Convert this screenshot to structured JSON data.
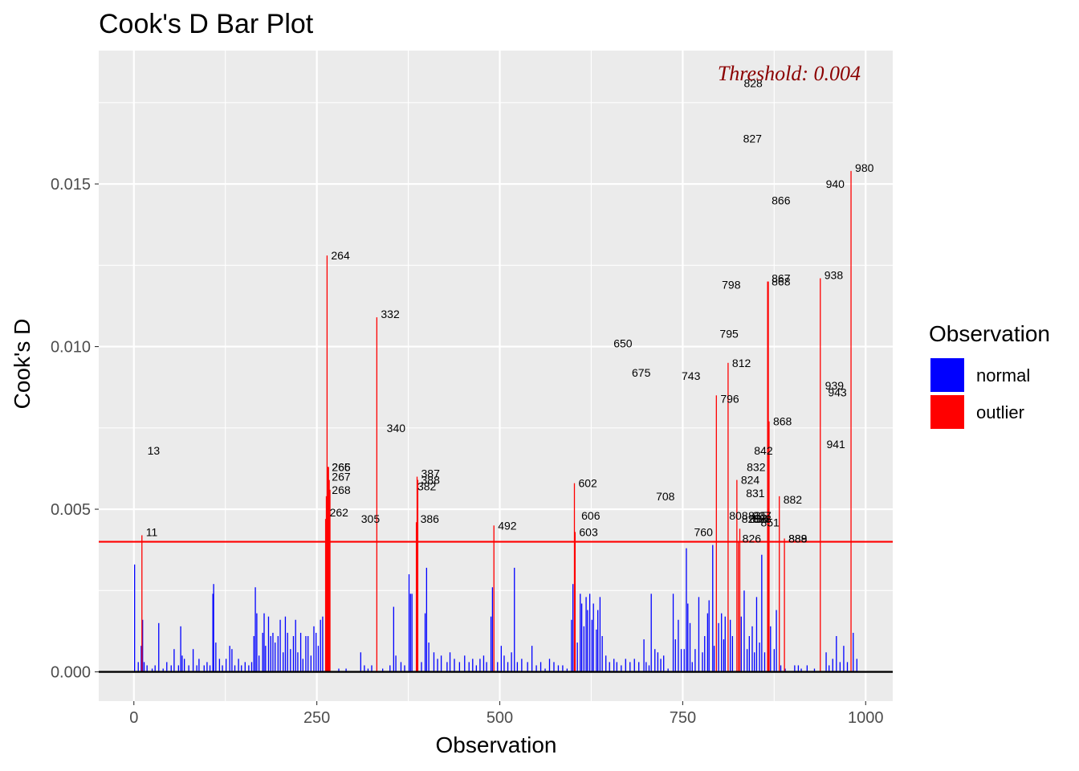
{
  "chart_data": {
    "type": "bar",
    "title": "Cook's D Bar Plot",
    "xlabel": "Observation",
    "ylabel": "Cook's D",
    "xlim": [
      -48,
      1037
    ],
    "ylim": [
      -0.0009,
      0.0191
    ],
    "x_ticks": [
      0,
      250,
      500,
      750,
      1000
    ],
    "x_tick_labels": [
      "0",
      "250",
      "500",
      "750",
      "1000"
    ],
    "y_ticks": [
      0.0,
      0.005,
      0.01,
      0.015
    ],
    "y_tick_labels": [
      "0.000",
      "0.005",
      "0.010",
      "0.015"
    ],
    "grid": true,
    "threshold": 0.004,
    "threshold_label": "Threshold: 0.004",
    "colors": {
      "normal": "#0000ff",
      "outlier": "#ff0000",
      "threshold_line": "#ff0000",
      "threshold_text": "#8b0000",
      "panel": "#ebebeb",
      "grid": "#ffffff"
    },
    "legend": {
      "title": "Observation",
      "placement": "right",
      "entries": [
        {
          "name": "normal",
          "color": "#0000ff"
        },
        {
          "name": "outlier",
          "color": "#ff0000"
        }
      ]
    },
    "normal_bars": [
      [
        1,
        0.0033
      ],
      [
        6,
        0.0003
      ],
      [
        10,
        0.0008
      ],
      [
        12,
        0.0016
      ],
      [
        14,
        0.0003
      ],
      [
        18,
        0.0002
      ],
      [
        25,
        0.0001
      ],
      [
        29,
        0.0002
      ],
      [
        34,
        0.0015
      ],
      [
        40,
        0.0001
      ],
      [
        45,
        0.0003
      ],
      [
        51,
        0.0002
      ],
      [
        55,
        0.0007
      ],
      [
        61,
        0.0002
      ],
      [
        64,
        0.0014
      ],
      [
        66,
        0.0005
      ],
      [
        69,
        0.0004
      ],
      [
        75,
        0.0002
      ],
      [
        81,
        0.0007
      ],
      [
        86,
        0.0002
      ],
      [
        89,
        0.0004
      ],
      [
        96,
        0.0002
      ],
      [
        100,
        0.0003
      ],
      [
        104,
        0.0002
      ],
      [
        108,
        0.0024
      ],
      [
        109,
        0.0027
      ],
      [
        112,
        0.0009
      ],
      [
        117,
        0.0004
      ],
      [
        121,
        0.0002
      ],
      [
        126,
        0.0004
      ],
      [
        131,
        0.0008
      ],
      [
        134,
        0.0007
      ],
      [
        138,
        0.0002
      ],
      [
        143,
        0.0004
      ],
      [
        147,
        0.0002
      ],
      [
        152,
        0.0003
      ],
      [
        157,
        0.0002
      ],
      [
        161,
        0.0003
      ],
      [
        164,
        0.0011
      ],
      [
        166,
        0.0026
      ],
      [
        168,
        0.0018
      ],
      [
        171,
        0.0005
      ],
      [
        176,
        0.0012
      ],
      [
        178,
        0.0018
      ],
      [
        180,
        0.0008
      ],
      [
        184,
        0.0017
      ],
      [
        187,
        0.0011
      ],
      [
        190,
        0.0012
      ],
      [
        193,
        0.0009
      ],
      [
        197,
        0.0011
      ],
      [
        200,
        0.0016
      ],
      [
        204,
        0.0006
      ],
      [
        207,
        0.0017
      ],
      [
        210,
        0.0012
      ],
      [
        214,
        0.0007
      ],
      [
        218,
        0.0011
      ],
      [
        221,
        0.0016
      ],
      [
        224,
        0.0006
      ],
      [
        228,
        0.0012
      ],
      [
        231,
        0.0004
      ],
      [
        235,
        0.0011
      ],
      [
        238,
        0.0011
      ],
      [
        242,
        0.0005
      ],
      [
        246,
        0.0014
      ],
      [
        249,
        0.0012
      ],
      [
        252,
        0.0008
      ],
      [
        255,
        0.0016
      ],
      [
        258,
        0.0017
      ],
      [
        280,
        0.0001
      ],
      [
        290,
        0.0001
      ],
      [
        310,
        0.0006
      ],
      [
        315,
        0.0002
      ],
      [
        320,
        0.0001
      ],
      [
        325,
        0.0002
      ],
      [
        340,
        0.0001
      ],
      [
        350,
        0.0002
      ],
      [
        355,
        0.002
      ],
      [
        358,
        0.0005
      ],
      [
        365,
        0.0003
      ],
      [
        370,
        0.0002
      ],
      [
        376,
        0.003
      ],
      [
        378,
        0.0024
      ],
      [
        380,
        0.0024
      ],
      [
        393,
        0.0003
      ],
      [
        398,
        0.0018
      ],
      [
        400,
        0.0032
      ],
      [
        403,
        0.0009
      ],
      [
        410,
        0.0006
      ],
      [
        415,
        0.0004
      ],
      [
        420,
        0.0005
      ],
      [
        428,
        0.0003
      ],
      [
        432,
        0.0006
      ],
      [
        438,
        0.0004
      ],
      [
        445,
        0.0003
      ],
      [
        452,
        0.0005
      ],
      [
        458,
        0.0003
      ],
      [
        463,
        0.0004
      ],
      [
        468,
        0.0002
      ],
      [
        473,
        0.0004
      ],
      [
        478,
        0.0005
      ],
      [
        482,
        0.0003
      ],
      [
        488,
        0.0017
      ],
      [
        490,
        0.0026
      ],
      [
        497,
        0.0003
      ],
      [
        502,
        0.0008
      ],
      [
        506,
        0.0005
      ],
      [
        511,
        0.0003
      ],
      [
        516,
        0.0006
      ],
      [
        520,
        0.0032
      ],
      [
        524,
        0.0003
      ],
      [
        530,
        0.0004
      ],
      [
        538,
        0.0003
      ],
      [
        544,
        0.0008
      ],
      [
        550,
        0.0002
      ],
      [
        556,
        0.0003
      ],
      [
        562,
        0.0001
      ],
      [
        568,
        0.0004
      ],
      [
        574,
        0.0003
      ],
      [
        580,
        0.0002
      ],
      [
        586,
        0.0002
      ],
      [
        592,
        0.0001
      ],
      [
        598,
        0.0016
      ],
      [
        600,
        0.0027
      ],
      [
        606,
        0.0009
      ],
      [
        610,
        0.0024
      ],
      [
        612,
        0.0021
      ],
      [
        615,
        0.0014
      ],
      [
        618,
        0.0023
      ],
      [
        620,
        0.0019
      ],
      [
        623,
        0.0024
      ],
      [
        626,
        0.0016
      ],
      [
        628,
        0.0021
      ],
      [
        632,
        0.0013
      ],
      [
        634,
        0.0019
      ],
      [
        637,
        0.0023
      ],
      [
        640,
        0.0011
      ],
      [
        645,
        0.0005
      ],
      [
        650,
        0.0003
      ],
      [
        656,
        0.0004
      ],
      [
        660,
        0.0003
      ],
      [
        666,
        0.0002
      ],
      [
        672,
        0.0004
      ],
      [
        678,
        0.0003
      ],
      [
        684,
        0.0004
      ],
      [
        690,
        0.0003
      ],
      [
        697,
        0.001
      ],
      [
        700,
        0.0003
      ],
      [
        704,
        0.0002
      ],
      [
        707,
        0.0024
      ],
      [
        712,
        0.0007
      ],
      [
        716,
        0.0006
      ],
      [
        720,
        0.0004
      ],
      [
        724,
        0.0005
      ],
      [
        730,
        0.0001
      ],
      [
        737,
        0.0024
      ],
      [
        740,
        0.001
      ],
      [
        744,
        0.0016
      ],
      [
        748,
        0.0007
      ],
      [
        752,
        0.0007
      ],
      [
        755,
        0.0038
      ],
      [
        757,
        0.0021
      ],
      [
        760,
        0.0015
      ],
      [
        763,
        0.0003
      ],
      [
        767,
        0.0007
      ],
      [
        772,
        0.0023
      ],
      [
        777,
        0.0006
      ],
      [
        780,
        0.0011
      ],
      [
        784,
        0.0018
      ],
      [
        786,
        0.0022
      ],
      [
        791,
        0.0039
      ],
      [
        793,
        0.0008
      ],
      [
        799,
        0.0015
      ],
      [
        803,
        0.0018
      ],
      [
        806,
        0.001
      ],
      [
        808,
        0.0017
      ],
      [
        815,
        0.0016
      ],
      [
        818,
        0.0011
      ],
      [
        830,
        0.0017
      ],
      [
        834,
        0.0025
      ],
      [
        838,
        0.0007
      ],
      [
        841,
        0.0011
      ],
      [
        845,
        0.0014
      ],
      [
        848,
        0.0006
      ],
      [
        851,
        0.0023
      ],
      [
        855,
        0.0009
      ],
      [
        858,
        0.0036
      ],
      [
        862,
        0.0006
      ],
      [
        870,
        0.0014
      ],
      [
        875,
        0.0007
      ],
      [
        878,
        0.0019
      ],
      [
        884,
        0.0002
      ],
      [
        890,
        0.0001
      ],
      [
        903,
        0.0002
      ],
      [
        908,
        0.0002
      ],
      [
        912,
        0.0001
      ],
      [
        920,
        0.0002
      ],
      [
        930,
        0.0001
      ],
      [
        946,
        0.0006
      ],
      [
        950,
        0.0002
      ],
      [
        955,
        0.0004
      ],
      [
        960,
        0.0011
      ],
      [
        965,
        0.0003
      ],
      [
        970,
        0.0008
      ],
      [
        975,
        0.0003
      ],
      [
        983,
        0.0012
      ],
      [
        988,
        0.0004
      ]
    ],
    "outlier_bars": [
      [
        11,
        0.0042
      ],
      [
        262,
        0.0047
      ],
      [
        263,
        0.0054
      ],
      [
        264,
        0.0128
      ],
      [
        265,
        0.0063
      ],
      [
        266,
        0.0063
      ],
      [
        267,
        0.0059
      ],
      [
        268,
        0.0056
      ],
      [
        332,
        0.0109
      ],
      [
        386,
        0.0046
      ],
      [
        387,
        0.006
      ],
      [
        388,
        0.0059
      ],
      [
        492,
        0.0045
      ],
      [
        602,
        0.0058
      ],
      [
        603,
        0.0043
      ],
      [
        812,
        0.0095
      ],
      [
        796,
        0.0085
      ],
      [
        824,
        0.0059
      ],
      [
        826,
        0.004
      ],
      [
        828,
        0.0044
      ],
      [
        866,
        0.012
      ],
      [
        867,
        0.012
      ],
      [
        868,
        0.0077
      ],
      [
        882,
        0.0054
      ],
      [
        889,
        0.0041
      ],
      [
        938,
        0.0121
      ],
      [
        980,
        0.0154
      ]
    ],
    "point_labels": [
      {
        "text": "11",
        "x": 11,
        "y": 0.0043
      },
      {
        "text": "13",
        "x": 13,
        "y": 0.0068
      },
      {
        "text": "264",
        "x": 264,
        "y": 0.0128
      },
      {
        "text": "265",
        "x": 265,
        "y": 0.0063
      },
      {
        "text": "266",
        "x": 265,
        "y": 0.0063
      },
      {
        "text": "267",
        "x": 265,
        "y": 0.006
      },
      {
        "text": "268",
        "x": 265,
        "y": 0.0056
      },
      {
        "text": "262",
        "x": 262,
        "y": 0.0049
      },
      {
        "text": "305",
        "x": 305,
        "y": 0.0047
      },
      {
        "text": "332",
        "x": 332,
        "y": 0.011
      },
      {
        "text": "340",
        "x": 340,
        "y": 0.0075
      },
      {
        "text": "387",
        "x": 387,
        "y": 0.0061
      },
      {
        "text": "388",
        "x": 387,
        "y": 0.0059
      },
      {
        "text": "382",
        "x": 382,
        "y": 0.0057
      },
      {
        "text": "386",
        "x": 386,
        "y": 0.0047
      },
      {
        "text": "492",
        "x": 492,
        "y": 0.0045
      },
      {
        "text": "602",
        "x": 602,
        "y": 0.0058
      },
      {
        "text": "606",
        "x": 606,
        "y": 0.0048
      },
      {
        "text": "603",
        "x": 603,
        "y": 0.0043
      },
      {
        "text": "650",
        "x": 650,
        "y": 0.0101
      },
      {
        "text": "675",
        "x": 675,
        "y": 0.0092
      },
      {
        "text": "708",
        "x": 708,
        "y": 0.0054
      },
      {
        "text": "743",
        "x": 743,
        "y": 0.0091
      },
      {
        "text": "760",
        "x": 760,
        "y": 0.0043
      },
      {
        "text": "795",
        "x": 795,
        "y": 0.0104
      },
      {
        "text": "798",
        "x": 798,
        "y": 0.0119
      },
      {
        "text": "796",
        "x": 796,
        "y": 0.0084
      },
      {
        "text": "812",
        "x": 812,
        "y": 0.0095
      },
      {
        "text": "808",
        "x": 808,
        "y": 0.0048
      },
      {
        "text": "824",
        "x": 824,
        "y": 0.0059
      },
      {
        "text": "827",
        "x": 827,
        "y": 0.0164
      },
      {
        "text": "828",
        "x": 828,
        "y": 0.0181
      },
      {
        "text": "831",
        "x": 831,
        "y": 0.0055
      },
      {
        "text": "832",
        "x": 832,
        "y": 0.0063
      },
      {
        "text": "825",
        "x": 825,
        "y": 0.0047
      },
      {
        "text": "826",
        "x": 826,
        "y": 0.0041
      },
      {
        "text": "835",
        "x": 834,
        "y": 0.0048
      },
      {
        "text": "836",
        "x": 836,
        "y": 0.0047
      },
      {
        "text": "837",
        "x": 840,
        "y": 0.0048
      },
      {
        "text": "838",
        "x": 840,
        "y": 0.0047
      },
      {
        "text": "851",
        "x": 851,
        "y": 0.0046
      },
      {
        "text": "842",
        "x": 842,
        "y": 0.0068
      },
      {
        "text": "866",
        "x": 866,
        "y": 0.0145
      },
      {
        "text": "867",
        "x": 866,
        "y": 0.0121
      },
      {
        "text": "868",
        "x": 866,
        "y": 0.012
      },
      {
        "text": "868",
        "x": 868,
        "y": 0.0077
      },
      {
        "text": "882",
        "x": 882,
        "y": 0.0053
      },
      {
        "text": "888",
        "x": 889,
        "y": 0.0041
      },
      {
        "text": "889",
        "x": 889,
        "y": 0.0041
      },
      {
        "text": "938",
        "x": 938,
        "y": 0.0122
      },
      {
        "text": "939",
        "x": 939,
        "y": 0.0088
      },
      {
        "text": "940",
        "x": 940,
        "y": 0.015
      },
      {
        "text": "941",
        "x": 941,
        "y": 0.007
      },
      {
        "text": "943",
        "x": 943,
        "y": 0.0086
      },
      {
        "text": "980",
        "x": 980,
        "y": 0.0155
      }
    ]
  }
}
